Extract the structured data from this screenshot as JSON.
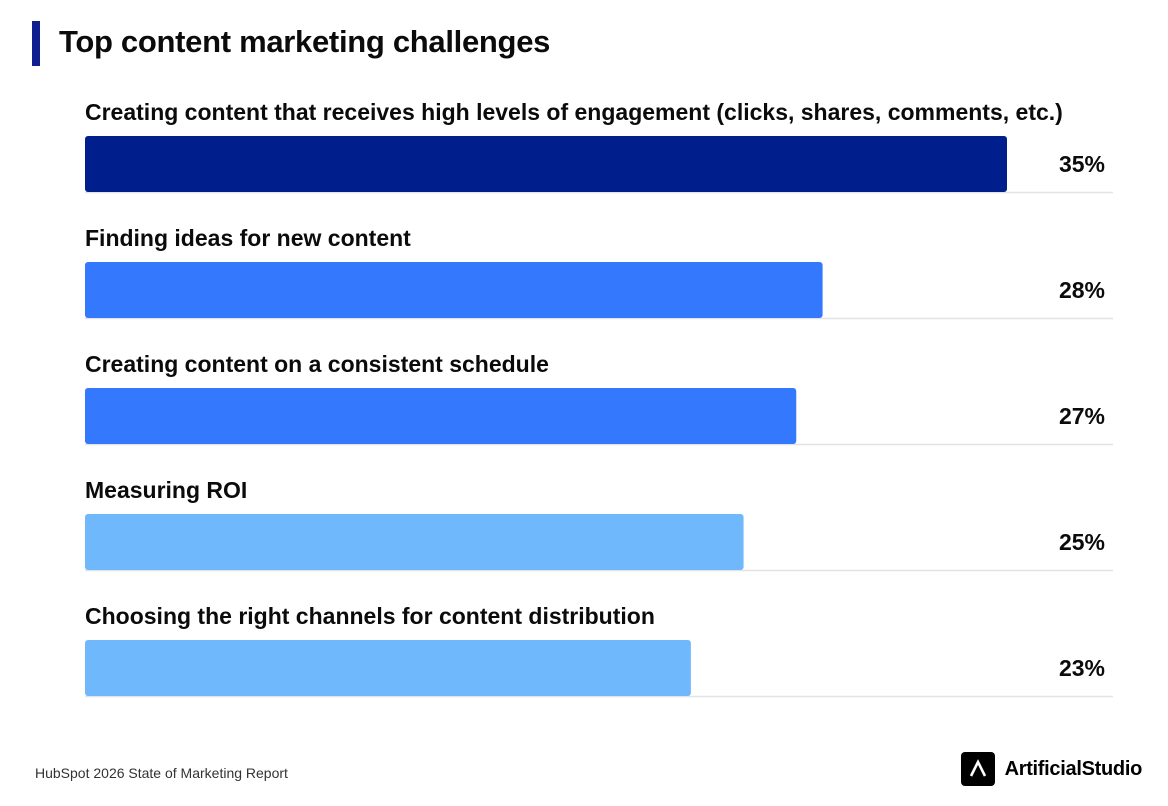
{
  "header": {
    "title": "Top content marketing challenges"
  },
  "footer": {
    "source": "HubSpot 2026 State of Marketing Report",
    "brand": "ArtificialStudio"
  },
  "chart_data": {
    "type": "bar",
    "orientation": "horizontal",
    "title": "Top content marketing challenges",
    "categories": [
      "Creating content that receives high levels of engagement (clicks, shares, comments, etc.)",
      "Finding ideas for new content",
      "Creating content on a consistent schedule",
      "Measuring ROI",
      "Choosing the right channels for content distribution"
    ],
    "values": [
      35,
      28,
      27,
      25,
      23
    ],
    "value_labels": [
      "35%",
      "28%",
      "27%",
      "25%",
      "23%"
    ],
    "unit": "%",
    "bar_colors": [
      "#001e8c",
      "#3478fe",
      "#3478fe",
      "#6fb8fc",
      "#6fb8fc"
    ],
    "xlim": [
      0,
      35
    ],
    "grid": false,
    "legend": "none"
  }
}
